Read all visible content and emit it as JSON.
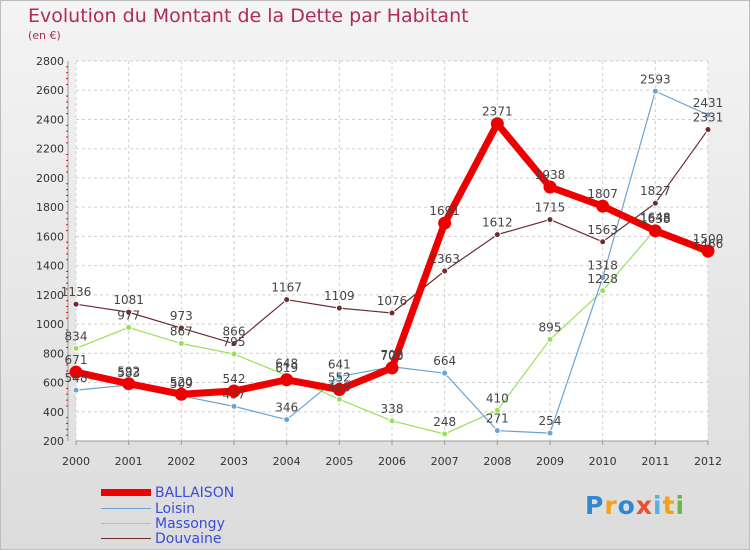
{
  "chart_data": {
    "type": "line",
    "title": "Evolution du Montant de la Dette par Habitant",
    "subtitle": "(en €)",
    "x": [
      "2000",
      "2001",
      "2002",
      "2003",
      "2004",
      "2005",
      "2006",
      "2007",
      "2008",
      "2009",
      "2010",
      "2011",
      "2012"
    ],
    "ylim": [
      200,
      2800
    ],
    "yticks": [
      200,
      400,
      600,
      800,
      1000,
      1200,
      1400,
      1600,
      1800,
      2000,
      2200,
      2400,
      2600,
      2800
    ],
    "grid": true,
    "legend_position": "bottom-left",
    "series": [
      {
        "name": "Douvaine",
        "color": "#6e2c2e",
        "width": 1.2,
        "marker": 3,
        "values": [
          1136,
          1081,
          973,
          866,
          1167,
          1109,
          1076,
          1363,
          1612,
          1715,
          1563,
          1827,
          2331
        ]
      },
      {
        "name": "Massongy",
        "color": "#99e05a",
        "width": 1.2,
        "marker": 3,
        "values": [
          834,
          977,
          867,
          795,
          648,
          485,
          338,
          248,
          410,
          895,
          1228,
          1648,
          1466
        ]
      },
      {
        "name": "Loisin",
        "color": "#6aa4d2",
        "width": 1.2,
        "marker": 3,
        "values": [
          548,
          583,
          509,
          437,
          346,
          641,
          708,
          664,
          271,
          254,
          1318,
          2593,
          2431
        ]
      },
      {
        "name": "BALLAISON",
        "color": "#ee0000",
        "width": 7,
        "marker": 6.5,
        "values": [
          671,
          592,
          520,
          542,
          619,
          552,
          700,
          1691,
          2371,
          1938,
          1807,
          1638,
          1500
        ]
      }
    ]
  },
  "legend": [
    "BALLAISON",
    "Loisin",
    "Massongy",
    "Douvaine"
  ],
  "legend_colors": [
    "#ee0000",
    "#6aa4d2",
    "#99e05a",
    "#6e2c2e"
  ],
  "logo": {
    "letters": [
      "P",
      "r",
      "o",
      "x",
      "i",
      "t",
      "i"
    ],
    "colors": [
      "#2f88d1",
      "#f4a21b",
      "#2f88d1",
      "#e8512c",
      "#55b3de",
      "#f4a21b",
      "#69b943"
    ]
  }
}
